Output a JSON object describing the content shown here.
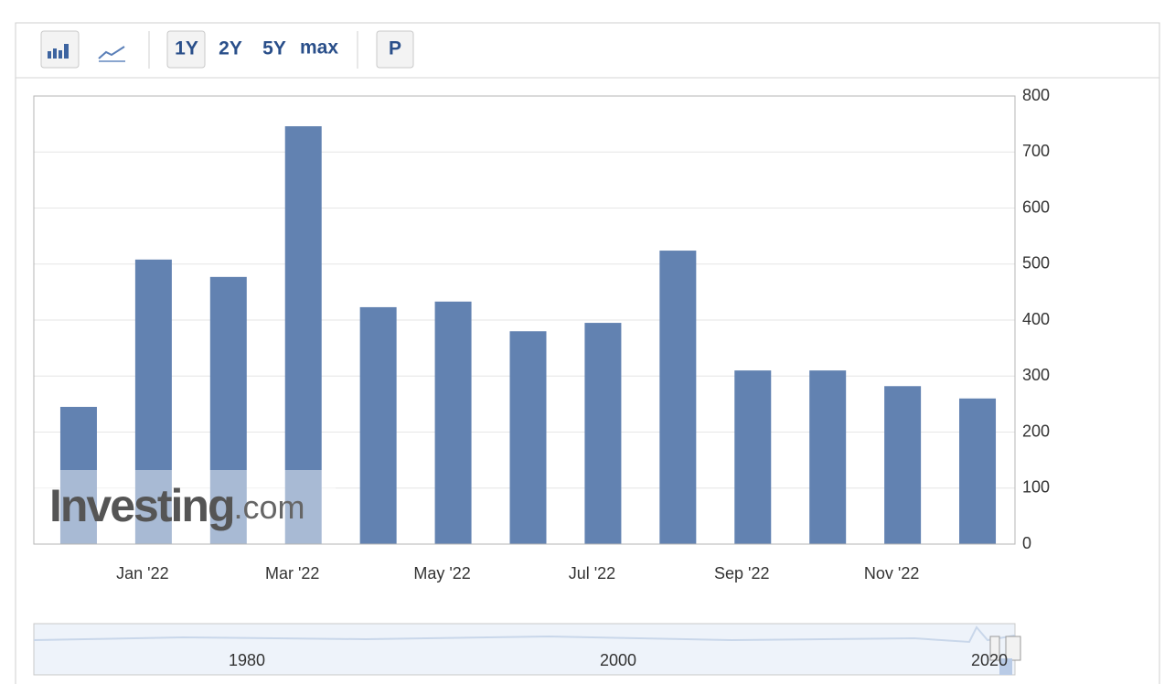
{
  "toolbar": {
    "ranges": [
      "1Y",
      "2Y",
      "5Y",
      "max"
    ],
    "p_button": "P"
  },
  "chart_data": {
    "type": "bar",
    "categories": [
      null,
      "Jan '22",
      null,
      "Mar '22",
      null,
      "May '22",
      null,
      "Jul '22",
      null,
      "Sep '22",
      null,
      "Nov '22",
      null
    ],
    "values": [
      245,
      508,
      477,
      746,
      423,
      433,
      380,
      395,
      524,
      310,
      310,
      282,
      260
    ],
    "color": "#6282b1",
    "ylim": [
      0,
      800
    ],
    "yticks": [
      0,
      100,
      200,
      300,
      400,
      500,
      600,
      700,
      800
    ],
    "grid": true
  },
  "watermark": {
    "brand": "Investing",
    "suffix": ".com"
  },
  "navigator": {
    "labels": [
      "1980",
      "2000",
      "2020"
    ]
  }
}
